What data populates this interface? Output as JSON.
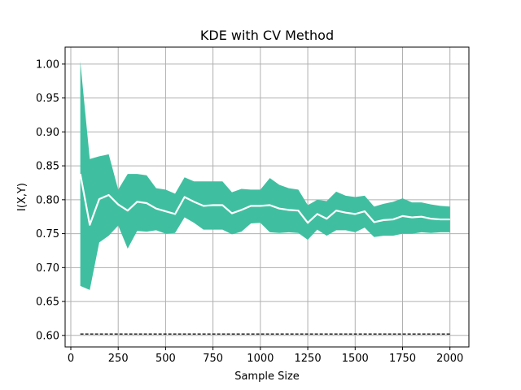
{
  "chart_data": {
    "type": "line",
    "title": "KDE with CV Method",
    "xlabel": "Sample Size",
    "ylabel": "I(X,Y)",
    "xlim": [
      -30,
      2100
    ],
    "ylim": [
      0.583,
      1.025
    ],
    "xticks": [
      0,
      250,
      500,
      750,
      1000,
      1250,
      1500,
      1750,
      2000
    ],
    "yticks": [
      0.6,
      0.65,
      0.7,
      0.75,
      0.8,
      0.85,
      0.9,
      0.95,
      1.0
    ],
    "grid": true,
    "x": [
      50,
      100,
      150,
      200,
      250,
      300,
      350,
      400,
      450,
      500,
      550,
      600,
      650,
      700,
      750,
      800,
      850,
      900,
      950,
      1000,
      1050,
      1100,
      1150,
      1200,
      1250,
      1300,
      1350,
      1400,
      1450,
      1500,
      1550,
      1600,
      1650,
      1700,
      1750,
      1800,
      1850,
      1900,
      1950,
      2000
    ],
    "series": [
      {
        "role": "mean",
        "color": "#ffffff",
        "values": [
          0.838,
          0.763,
          0.801,
          0.807,
          0.793,
          0.784,
          0.797,
          0.795,
          0.787,
          0.783,
          0.779,
          0.804,
          0.797,
          0.791,
          0.792,
          0.792,
          0.78,
          0.785,
          0.791,
          0.791,
          0.792,
          0.787,
          0.785,
          0.784,
          0.766,
          0.779,
          0.772,
          0.784,
          0.781,
          0.779,
          0.783,
          0.767,
          0.77,
          0.771,
          0.776,
          0.774,
          0.775,
          0.772,
          0.771,
          0.771
        ]
      },
      {
        "role": "band-upper",
        "color": "#3fbfa0",
        "values": [
          1.004,
          0.86,
          0.864,
          0.867,
          0.815,
          0.838,
          0.838,
          0.836,
          0.817,
          0.815,
          0.809,
          0.833,
          0.827,
          0.827,
          0.827,
          0.827,
          0.811,
          0.816,
          0.815,
          0.815,
          0.832,
          0.822,
          0.817,
          0.815,
          0.792,
          0.8,
          0.798,
          0.812,
          0.806,
          0.804,
          0.806,
          0.79,
          0.794,
          0.797,
          0.802,
          0.796,
          0.796,
          0.793,
          0.791,
          0.79
        ]
      },
      {
        "role": "band-lower",
        "color": "#3fbfa0",
        "values": [
          0.673,
          0.667,
          0.737,
          0.747,
          0.762,
          0.728,
          0.754,
          0.753,
          0.755,
          0.75,
          0.751,
          0.774,
          0.766,
          0.756,
          0.756,
          0.756,
          0.749,
          0.753,
          0.765,
          0.766,
          0.752,
          0.751,
          0.752,
          0.751,
          0.741,
          0.756,
          0.747,
          0.755,
          0.755,
          0.752,
          0.759,
          0.745,
          0.747,
          0.747,
          0.75,
          0.75,
          0.752,
          0.751,
          0.752,
          0.752
        ]
      },
      {
        "role": "reference",
        "style": "dashed",
        "color": "#000000",
        "x": [
          50,
          2000
        ],
        "values": [
          0.602,
          0.602
        ]
      }
    ]
  }
}
